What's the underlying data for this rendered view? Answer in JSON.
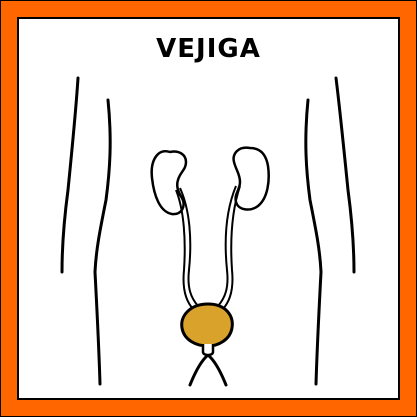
{
  "card": {
    "title": "VEJIGA",
    "frame_color": "#ff6600",
    "outline_color": "#000000",
    "highlight_organ": "bladder",
    "highlight_color": "#d9a22a"
  },
  "figure": {
    "parts": [
      "torso-outline",
      "kidney-left",
      "kidney-right",
      "ureter-left",
      "ureter-right",
      "bladder",
      "urethra",
      "legs"
    ]
  }
}
